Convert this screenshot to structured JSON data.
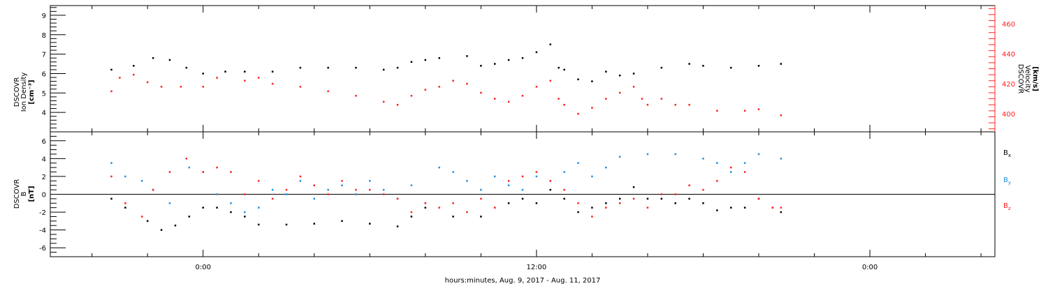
{
  "colors": {
    "black": "#000000",
    "red": "#ff2020",
    "blue": "#1e8fe6",
    "axis": "#000000"
  },
  "chart_data": [
    {
      "type": "scatter",
      "panel": "top",
      "left_axis": {
        "label_lines": [
          "DSCOVR",
          "Ion Density"
        ],
        "unit": "[cm⁻³]",
        "ylim": [
          3,
          9.5
        ],
        "ticks": [
          "4",
          "5",
          "6",
          "7",
          "8",
          "9"
        ]
      },
      "right_axis": {
        "label_lines": [
          "DSCOVR",
          "Velocity"
        ],
        "unit": "[km/s]",
        "ylim": [
          388,
          472
        ],
        "ticks": [
          "400",
          "420",
          "440",
          "460"
        ]
      },
      "series": [
        {
          "color": "black",
          "axis": "left",
          "points": [
            [
              -3.3,
              6.2
            ],
            [
              -2.5,
              6.4
            ],
            [
              -1.8,
              6.8
            ],
            [
              -1.2,
              6.7
            ],
            [
              -0.6,
              6.3
            ],
            [
              0.0,
              6.0
            ],
            [
              0.8,
              6.1
            ],
            [
              1.5,
              6.1
            ],
            [
              2.5,
              6.1
            ],
            [
              3.5,
              6.3
            ],
            [
              4.5,
              6.3
            ],
            [
              5.5,
              6.3
            ],
            [
              6.5,
              6.2
            ],
            [
              7.0,
              6.3
            ],
            [
              7.5,
              6.6
            ],
            [
              8.0,
              6.7
            ],
            [
              8.5,
              6.8
            ],
            [
              9.5,
              6.9
            ],
            [
              10.0,
              6.4
            ],
            [
              10.5,
              6.5
            ],
            [
              11.0,
              6.7
            ],
            [
              11.5,
              6.8
            ],
            [
              12.0,
              7.1
            ],
            [
              12.5,
              7.5
            ],
            [
              12.8,
              6.3
            ],
            [
              13.0,
              6.2
            ],
            [
              13.5,
              5.7
            ],
            [
              14.0,
              5.6
            ],
            [
              14.5,
              6.1
            ],
            [
              15.0,
              5.9
            ],
            [
              15.5,
              6.0
            ],
            [
              16.5,
              6.3
            ],
            [
              17.5,
              6.5
            ],
            [
              18.0,
              6.4
            ],
            [
              19.0,
              6.3
            ],
            [
              20.0,
              6.4
            ],
            [
              20.8,
              6.5
            ]
          ]
        },
        {
          "color": "red",
          "axis": "right",
          "points": [
            [
              -3.3,
              415
            ],
            [
              -3.0,
              424
            ],
            [
              -2.5,
              426
            ],
            [
              -2.0,
              421
            ],
            [
              -1.5,
              418
            ],
            [
              -0.8,
              418
            ],
            [
              0.0,
              418
            ],
            [
              0.5,
              424
            ],
            [
              1.5,
              422
            ],
            [
              2.0,
              424
            ],
            [
              2.5,
              420
            ],
            [
              3.5,
              418
            ],
            [
              4.5,
              415
            ],
            [
              5.5,
              412
            ],
            [
              6.5,
              408
            ],
            [
              7.0,
              406
            ],
            [
              7.5,
              412
            ],
            [
              8.0,
              416
            ],
            [
              8.5,
              418
            ],
            [
              9.0,
              422
            ],
            [
              9.5,
              420
            ],
            [
              10.0,
              414
            ],
            [
              10.5,
              410
            ],
            [
              11.0,
              408
            ],
            [
              11.5,
              412
            ],
            [
              12.0,
              418
            ],
            [
              12.5,
              422
            ],
            [
              12.8,
              410
            ],
            [
              13.0,
              406
            ],
            [
              13.5,
              400
            ],
            [
              14.0,
              404
            ],
            [
              14.5,
              410
            ],
            [
              15.0,
              414
            ],
            [
              15.5,
              418
            ],
            [
              15.8,
              410
            ],
            [
              16.0,
              406
            ],
            [
              16.5,
              410
            ],
            [
              17.0,
              406
            ],
            [
              17.5,
              406
            ],
            [
              18.5,
              402
            ],
            [
              19.5,
              402
            ],
            [
              20.0,
              403
            ],
            [
              20.8,
              399
            ]
          ]
        }
      ]
    },
    {
      "type": "scatter",
      "panel": "bottom",
      "left_axis": {
        "label_lines": [
          "DSCOVR",
          "B"
        ],
        "unit": "[nT]",
        "ylim": [
          -7,
          7
        ],
        "ticks": [
          "-6",
          "-4",
          "-2",
          "0",
          "2",
          "4",
          "6"
        ]
      },
      "zero_line": true,
      "legend": [
        "Bx",
        "By",
        "Bz"
      ],
      "series": [
        {
          "name": "Bx",
          "color": "black",
          "points": [
            [
              -3.3,
              -0.5
            ],
            [
              -2.8,
              -1.5
            ],
            [
              -2.0,
              -3.0
            ],
            [
              -1.5,
              -4.0
            ],
            [
              -1.0,
              -3.5
            ],
            [
              -0.5,
              -2.5
            ],
            [
              0.0,
              -1.5
            ],
            [
              0.5,
              -1.5
            ],
            [
              1.0,
              -2.0
            ],
            [
              1.5,
              -2.5
            ],
            [
              2.0,
              -3.4
            ],
            [
              3.0,
              -3.4
            ],
            [
              4.0,
              -3.3
            ],
            [
              5.0,
              -3.0
            ],
            [
              6.0,
              -3.3
            ],
            [
              7.0,
              -3.6
            ],
            [
              7.5,
              -2.5
            ],
            [
              8.0,
              -1.5
            ],
            [
              9.0,
              -2.5
            ],
            [
              10.0,
              -2.5
            ],
            [
              10.5,
              -1.5
            ],
            [
              11.0,
              -1.0
            ],
            [
              11.5,
              -0.5
            ],
            [
              12.0,
              -1.0
            ],
            [
              12.5,
              0.5
            ],
            [
              13.0,
              -0.5
            ],
            [
              13.5,
              -2.0
            ],
            [
              14.0,
              -1.5
            ],
            [
              14.5,
              -1.0
            ],
            [
              15.0,
              -0.5
            ],
            [
              15.5,
              0.8
            ],
            [
              16.0,
              -0.5
            ],
            [
              16.5,
              -0.5
            ],
            [
              17.0,
              -1.0
            ],
            [
              17.5,
              -0.5
            ],
            [
              18.0,
              -1.0
            ],
            [
              18.5,
              -1.8
            ],
            [
              19.0,
              -1.5
            ],
            [
              19.5,
              -1.5
            ],
            [
              20.0,
              -0.5
            ],
            [
              20.5,
              -1.5
            ],
            [
              20.8,
              -2.0
            ]
          ]
        },
        {
          "name": "By",
          "color": "blue",
          "points": [
            [
              -3.3,
              3.5
            ],
            [
              -2.8,
              2.0
            ],
            [
              -2.2,
              1.5
            ],
            [
              -1.8,
              0.5
            ],
            [
              -1.2,
              -1.0
            ],
            [
              -0.5,
              3.0
            ],
            [
              0.0,
              2.5
            ],
            [
              0.5,
              0.0
            ],
            [
              1.0,
              -1.0
            ],
            [
              1.5,
              -2.0
            ],
            [
              2.0,
              -1.5
            ],
            [
              2.5,
              0.5
            ],
            [
              3.0,
              0.0
            ],
            [
              3.5,
              1.5
            ],
            [
              4.0,
              -0.5
            ],
            [
              4.5,
              0.5
            ],
            [
              5.0,
              1.0
            ],
            [
              5.5,
              0.0
            ],
            [
              6.0,
              1.5
            ],
            [
              6.5,
              0.5
            ],
            [
              7.0,
              -0.5
            ],
            [
              7.5,
              1.0
            ],
            [
              8.0,
              -1.0
            ],
            [
              8.5,
              3.0
            ],
            [
              9.0,
              2.5
            ],
            [
              9.5,
              1.5
            ],
            [
              10.0,
              0.5
            ],
            [
              10.5,
              2.0
            ],
            [
              11.0,
              1.0
            ],
            [
              11.5,
              0.5
            ],
            [
              12.0,
              2.0
            ],
            [
              12.5,
              1.5
            ],
            [
              13.0,
              2.5
            ],
            [
              13.5,
              3.5
            ],
            [
              14.0,
              2.0
            ],
            [
              14.5,
              3.0
            ],
            [
              15.0,
              4.2
            ],
            [
              16.0,
              4.5
            ],
            [
              17.0,
              4.5
            ],
            [
              18.0,
              4.0
            ],
            [
              18.5,
              3.5
            ],
            [
              19.0,
              2.5
            ],
            [
              19.5,
              3.5
            ],
            [
              20.0,
              4.5
            ],
            [
              20.8,
              4.0
            ]
          ]
        },
        {
          "name": "Bz",
          "color": "red",
          "points": [
            [
              -3.3,
              2.0
            ],
            [
              -2.8,
              -1.0
            ],
            [
              -2.2,
              -2.5
            ],
            [
              -1.8,
              0.5
            ],
            [
              -1.2,
              2.5
            ],
            [
              -0.6,
              4.0
            ],
            [
              0.0,
              2.5
            ],
            [
              0.5,
              3.0
            ],
            [
              1.0,
              2.5
            ],
            [
              1.5,
              0.0
            ],
            [
              2.0,
              1.5
            ],
            [
              2.5,
              -0.5
            ],
            [
              3.0,
              0.5
            ],
            [
              3.5,
              2.0
            ],
            [
              4.0,
              1.0
            ],
            [
              4.5,
              0.0
            ],
            [
              5.0,
              1.5
            ],
            [
              5.5,
              0.5
            ],
            [
              6.0,
              0.5
            ],
            [
              6.5,
              0.0
            ],
            [
              7.0,
              -0.5
            ],
            [
              7.5,
              -2.0
            ],
            [
              8.0,
              -1.0
            ],
            [
              8.5,
              -1.5
            ],
            [
              9.0,
              -1.0
            ],
            [
              9.5,
              -2.0
            ],
            [
              10.0,
              -0.5
            ],
            [
              10.5,
              -1.5
            ],
            [
              11.0,
              1.5
            ],
            [
              11.5,
              2.0
            ],
            [
              12.0,
              2.5
            ],
            [
              12.5,
              1.5
            ],
            [
              13.0,
              0.5
            ],
            [
              13.5,
              -1.0
            ],
            [
              14.0,
              -2.5
            ],
            [
              14.5,
              -1.5
            ],
            [
              15.0,
              -1.0
            ],
            [
              15.5,
              -0.5
            ],
            [
              16.0,
              -1.5
            ],
            [
              16.5,
              0.0
            ],
            [
              17.0,
              0.0
            ],
            [
              17.5,
              1.0
            ],
            [
              18.0,
              0.5
            ],
            [
              18.5,
              1.5
            ],
            [
              19.0,
              3.0
            ],
            [
              19.5,
              2.5
            ],
            [
              20.0,
              -0.5
            ],
            [
              20.5,
              -1.5
            ],
            [
              20.8,
              -1.5
            ]
          ]
        }
      ]
    }
  ],
  "x_axis": {
    "label": "hours:minutes, Aug.  9, 2017 - Aug. 11, 2017",
    "range_hours": [
      -5.5,
      28.5
    ],
    "labelled_ticks": [
      {
        "h": 0,
        "label": "0:00"
      },
      {
        "h": 12,
        "label": "12:00"
      },
      {
        "h": 24,
        "label": "0:00"
      }
    ],
    "minor_step_hours": 2
  }
}
